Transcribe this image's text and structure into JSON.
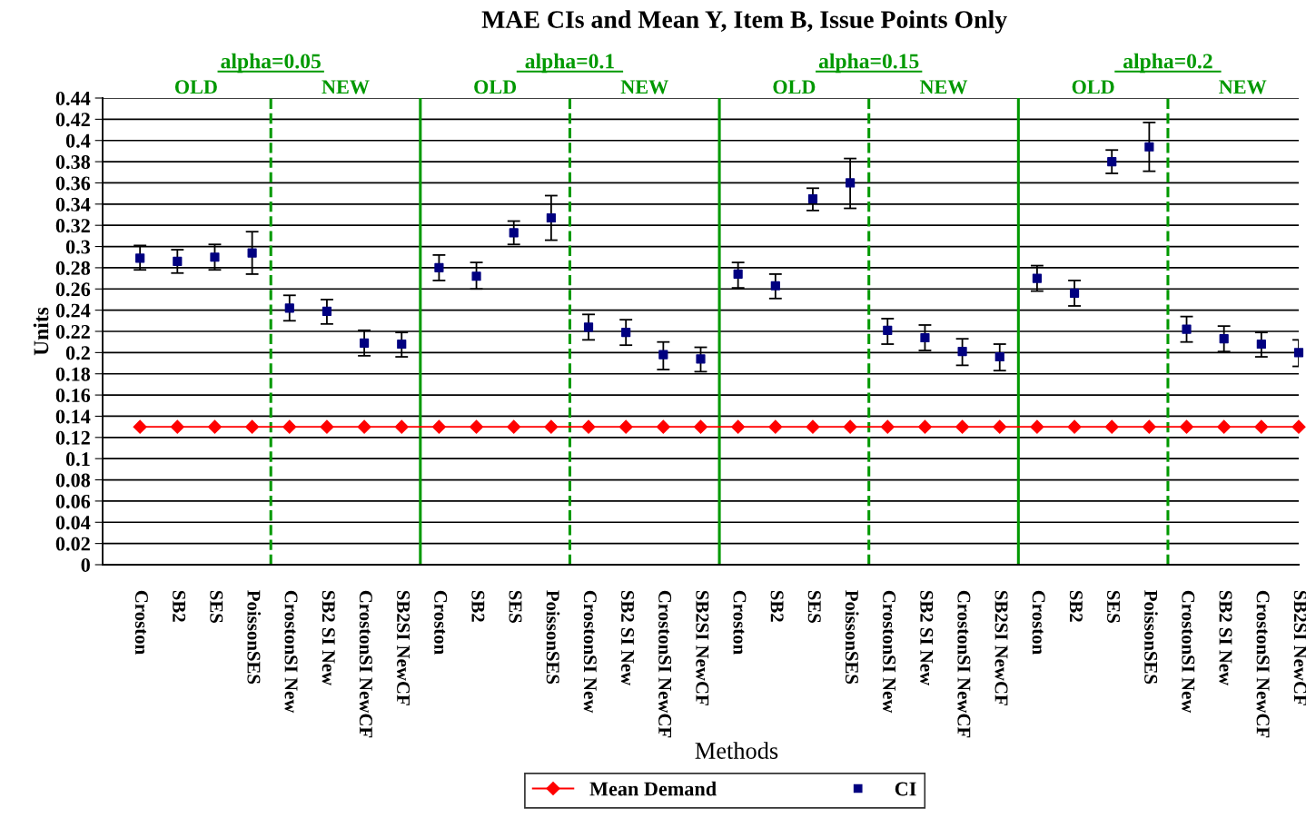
{
  "chart_data": {
    "type": "scatter",
    "title": "MAE CIs and Mean Y, Item B, Issue Points Only",
    "xlabel": "Methods",
    "ylabel": "Units",
    "categories": [
      "Croston",
      "SB2",
      "SES",
      "PoissonSES",
      "CrostonSI New",
      "SB2 SI New",
      "CrostonSI NewCF",
      "SB2SI NewCF",
      "Croston",
      "SB2",
      "SES",
      "PoissonSES",
      "CrostonSI New",
      "SB2 SI New",
      "CrostonSI NewCF",
      "SB2SI NewCF",
      "Croston",
      "SB2",
      "SES",
      "PoissonSES",
      "CrostonSI New",
      "SB2 SI New",
      "CrostonSI NewCF",
      "SB2SI NewCF",
      "Croston",
      "SB2",
      "SES",
      "PoissonSES",
      "CrostonSI New",
      "SB2 SI New",
      "CrostonSI NewCF",
      "SB2SI NewCF"
    ],
    "ylim": [
      0,
      0.44
    ],
    "yticks": [
      0,
      0.02,
      0.04,
      0.06,
      0.08,
      0.1,
      0.12,
      0.14,
      0.16,
      0.18,
      0.2,
      0.22,
      0.24,
      0.26,
      0.28,
      0.3,
      0.32,
      0.34,
      0.36,
      0.38,
      0.4,
      0.42,
      0.44
    ],
    "grid": "y",
    "legend": "bottom",
    "series": [
      {
        "name": "Mean Demand",
        "type": "line",
        "color": "#ff0000",
        "marker": "diamond",
        "line_style": "solid",
        "values": [
          0.13,
          0.13,
          0.13,
          0.13,
          0.13,
          0.13,
          0.13,
          0.13,
          0.13,
          0.13,
          0.13,
          0.13,
          0.13,
          0.13,
          0.13,
          0.13,
          0.13,
          0.13,
          0.13,
          0.13,
          0.13,
          0.13,
          0.13,
          0.13,
          0.13,
          0.13,
          0.13,
          0.13,
          0.13,
          0.13,
          0.13,
          0.13
        ]
      },
      {
        "name": "CI",
        "type": "scatter",
        "color": "#000080",
        "marker": "square",
        "values": [
          0.289,
          0.286,
          0.29,
          0.294,
          0.242,
          0.239,
          0.209,
          0.208,
          0.28,
          0.272,
          0.313,
          0.327,
          0.224,
          0.219,
          0.198,
          0.194,
          0.274,
          0.263,
          0.345,
          0.36,
          0.221,
          0.214,
          0.201,
          0.196,
          0.27,
          0.256,
          0.38,
          0.394,
          0.222,
          0.213,
          0.208,
          0.2
        ],
        "errors": [
          [
            0.278,
            0.301
          ],
          [
            0.275,
            0.297
          ],
          [
            0.278,
            0.302
          ],
          [
            0.274,
            0.314
          ],
          [
            0.23,
            0.254
          ],
          [
            0.227,
            0.25
          ],
          [
            0.197,
            0.221
          ],
          [
            0.196,
            0.219
          ],
          [
            0.268,
            0.292
          ],
          [
            0.26,
            0.285
          ],
          [
            0.302,
            0.324
          ],
          [
            0.306,
            0.348
          ],
          [
            0.212,
            0.236
          ],
          [
            0.207,
            0.231
          ],
          [
            0.184,
            0.21
          ],
          [
            0.182,
            0.205
          ],
          [
            0.261,
            0.285
          ],
          [
            0.251,
            0.274
          ],
          [
            0.334,
            0.355
          ],
          [
            0.336,
            0.383
          ],
          [
            0.208,
            0.232
          ],
          [
            0.202,
            0.226
          ],
          [
            0.188,
            0.213
          ],
          [
            0.183,
            0.208
          ],
          [
            0.258,
            0.282
          ],
          [
            0.244,
            0.268
          ],
          [
            0.369,
            0.391
          ],
          [
            0.371,
            0.417
          ],
          [
            0.21,
            0.234
          ],
          [
            0.201,
            0.225
          ],
          [
            0.196,
            0.219
          ],
          [
            0.187,
            0.212
          ]
        ]
      }
    ],
    "annotations": [
      "alpha=0.05",
      "alpha=0.1",
      "alpha=0.15",
      "alpha=0.2",
      "OLD",
      "NEW",
      "OLD",
      "NEW",
      "OLD",
      "NEW",
      "OLD",
      "NEW"
    ]
  }
}
